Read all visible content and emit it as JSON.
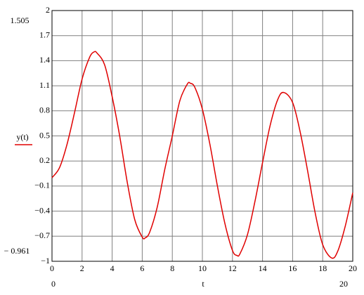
{
  "chart_data": {
    "type": "line",
    "xlabel": "t",
    "x": [
      0,
      0.5,
      1,
      1.5,
      2,
      2.5,
      2.8,
      3,
      3.5,
      4,
      4.5,
      5,
      5.5,
      6,
      6.2,
      6.5,
      7,
      7.5,
      8,
      8.5,
      9,
      9.2,
      9.5,
      10,
      10.5,
      11,
      11.5,
      12,
      12.3,
      12.5,
      13,
      13.5,
      14,
      14.5,
      15,
      15.4,
      16,
      16.5,
      17,
      17.5,
      18,
      18.6,
      19,
      19.5,
      20
    ],
    "series": [
      {
        "name": "y(t)",
        "color": "#e00000",
        "values": [
          0.0,
          0.12,
          0.4,
          0.78,
          1.18,
          1.44,
          1.505,
          1.49,
          1.35,
          0.97,
          0.5,
          -0.05,
          -0.5,
          -0.71,
          -0.72,
          -0.65,
          -0.35,
          0.1,
          0.5,
          0.92,
          1.12,
          1.13,
          1.08,
          0.82,
          0.4,
          -0.1,
          -0.55,
          -0.87,
          -0.93,
          -0.91,
          -0.68,
          -0.28,
          0.18,
          0.62,
          0.93,
          1.02,
          0.9,
          0.55,
          0.08,
          -0.42,
          -0.8,
          -0.961,
          -0.88,
          -0.58,
          -0.18
        ]
      }
    ],
    "xlim": [
      0,
      20
    ],
    "xticks": [
      0,
      2,
      4,
      6,
      8,
      10,
      12,
      14,
      16,
      18,
      20
    ],
    "ylim": [
      -1,
      2
    ],
    "yticks": [
      {
        "value": -1,
        "label": "−1"
      },
      {
        "value": -0.7,
        "label": "−0.7"
      },
      {
        "value": -0.4,
        "label": "−0.4"
      },
      {
        "value": -0.1,
        "label": "−0.1"
      },
      0.2,
      0.5,
      0.8,
      1.1,
      1.4,
      1.7,
      2
    ],
    "grid": true,
    "y_range_labels": [
      "1.505",
      "− 0.961"
    ],
    "x_range_labels": [
      "0",
      "20"
    ]
  }
}
